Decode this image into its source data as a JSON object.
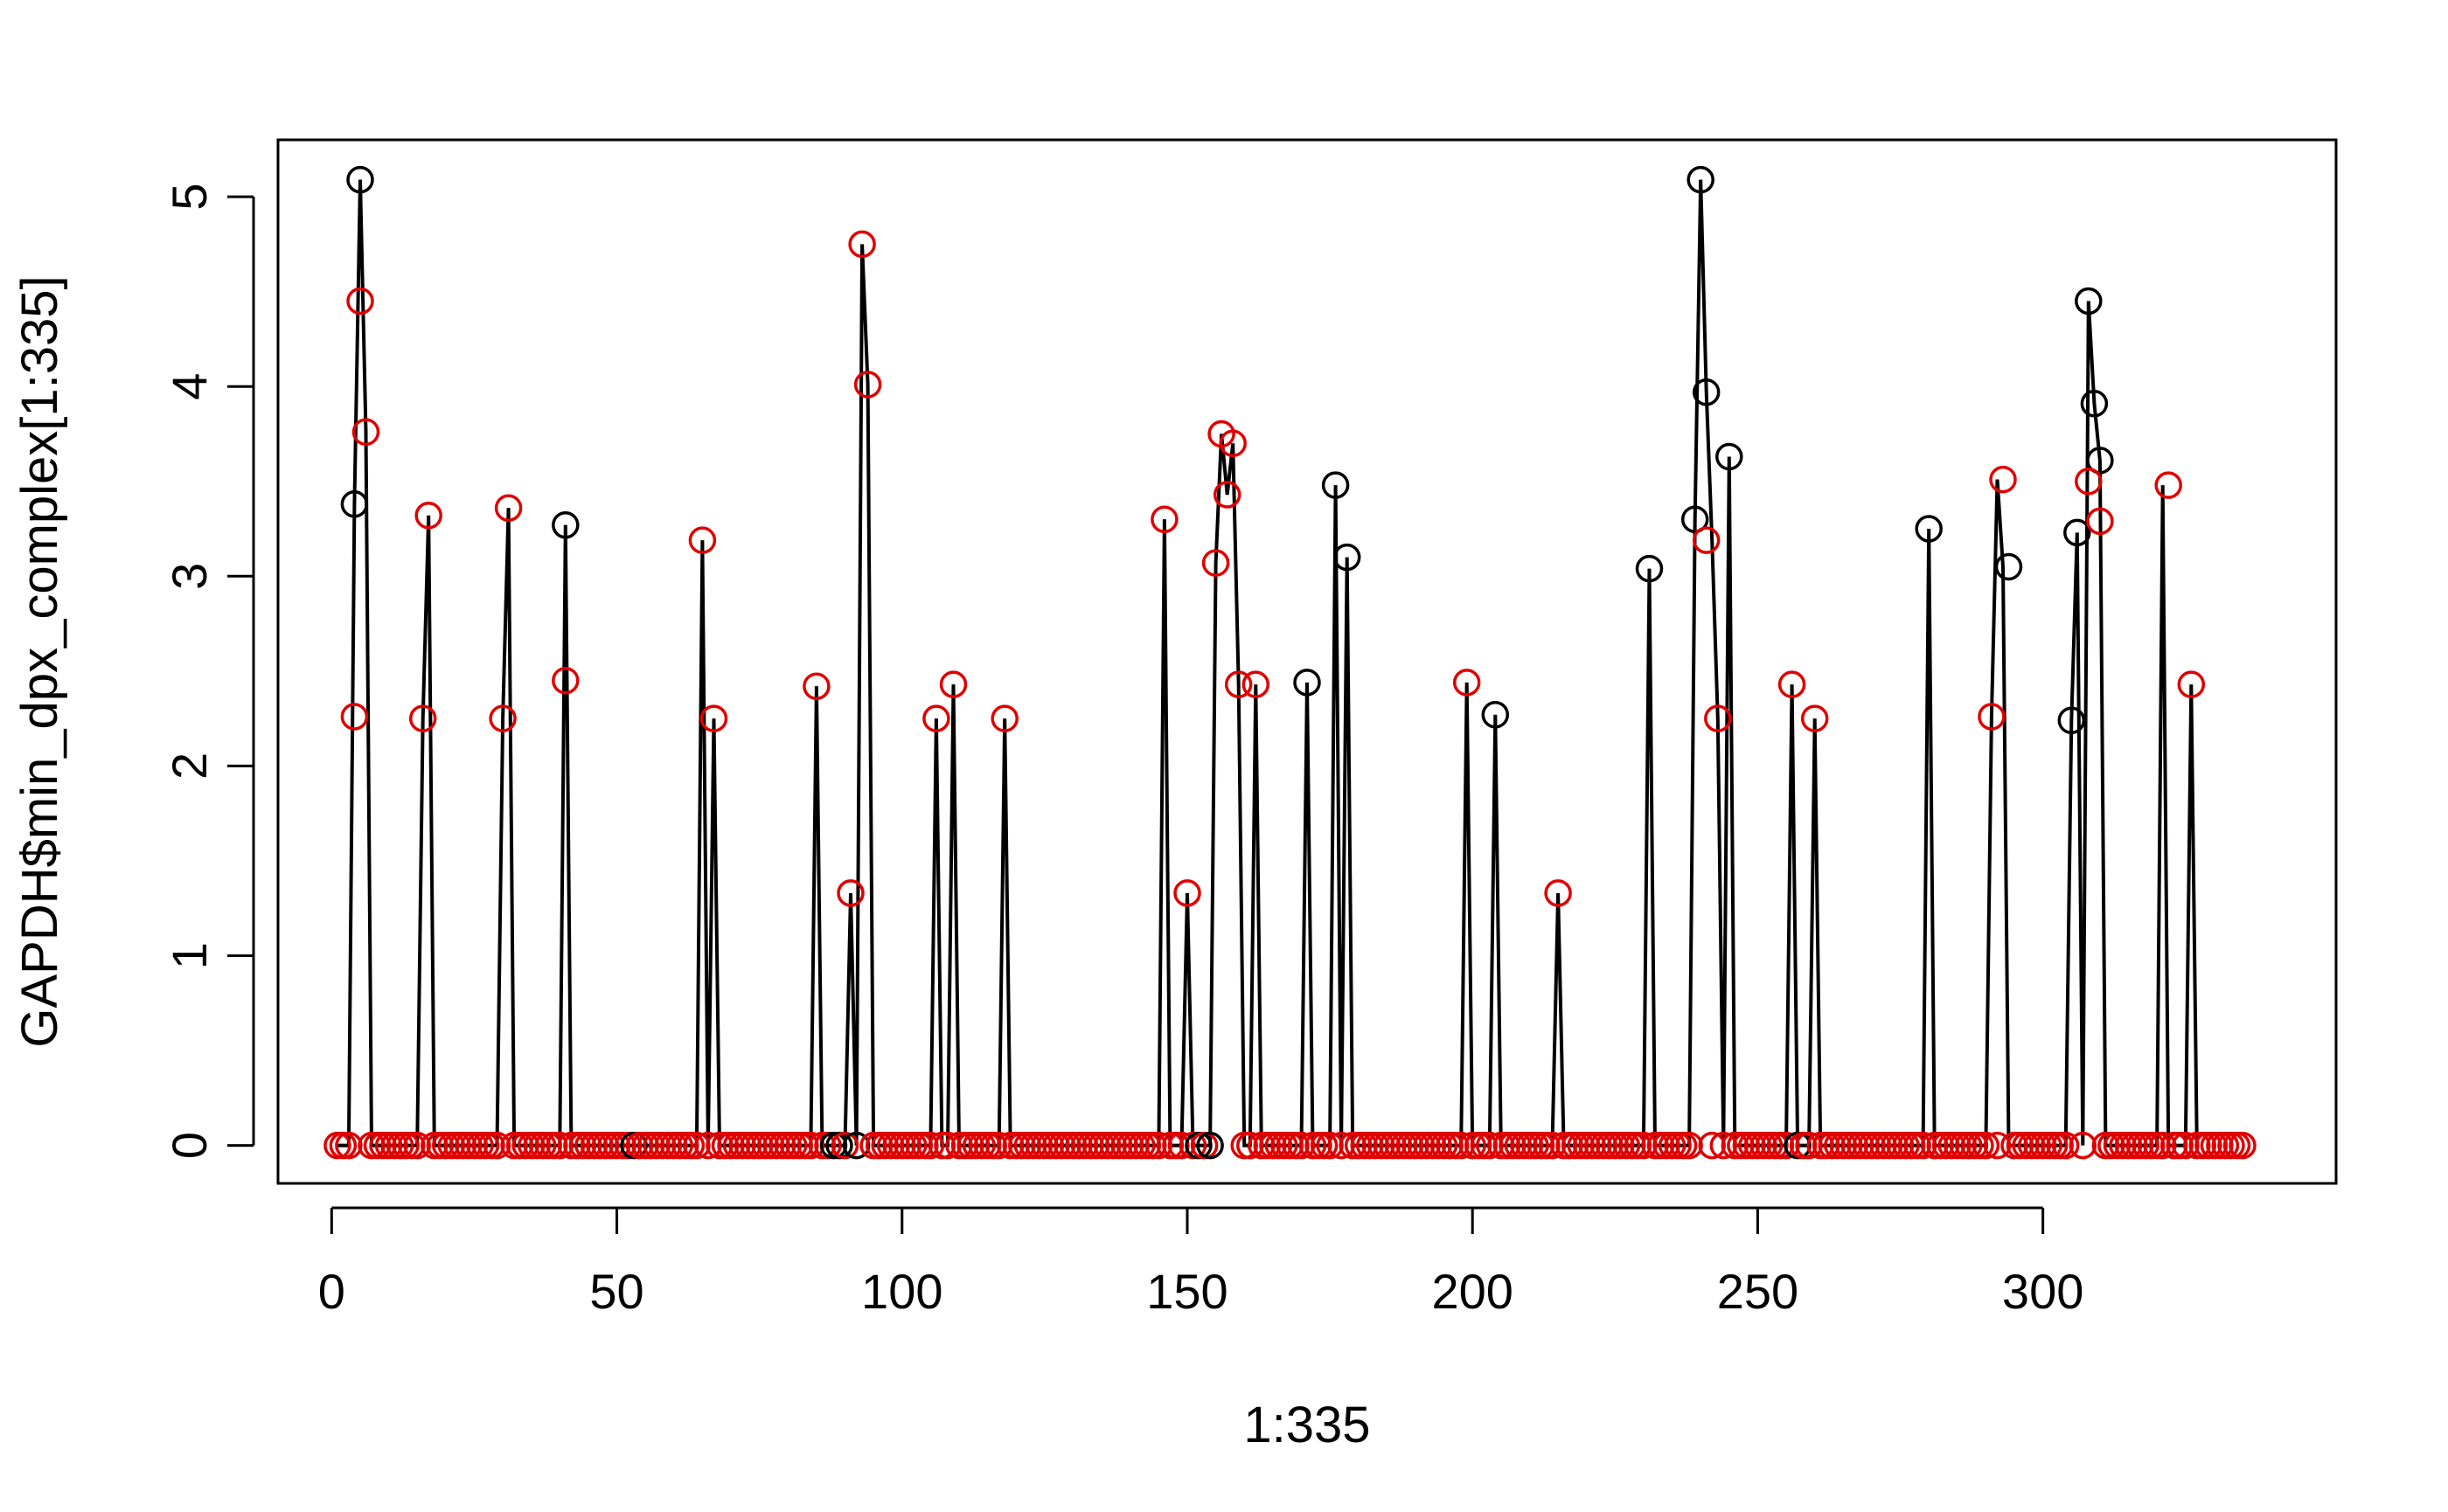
{
  "chart_data": {
    "type": "scatter",
    "title": "",
    "xlabel": "1:335",
    "ylabel": "GAPDH$min_dpx_complex[1:335]",
    "xlim": [
      -9.4,
      351.4
    ],
    "ylim": [
      -0.2,
      5.3
    ],
    "xticks": [
      0,
      50,
      100,
      150,
      200,
      250,
      300
    ],
    "yticks": [
      0,
      1,
      2,
      3,
      4,
      5
    ],
    "grid": false,
    "legend": "none",
    "n": 335,
    "colors": {
      "line": "#000000",
      "black_points": "#000000",
      "red_points": "#e00000"
    },
    "line_series": {
      "type": "line",
      "x": [
        1,
        2,
        3,
        4,
        5,
        6,
        7,
        15,
        16,
        17,
        18,
        29,
        30,
        31,
        32,
        40,
        41,
        42,
        64,
        65,
        66,
        67,
        68,
        84,
        85,
        86,
        90,
        91,
        92,
        93,
        94,
        95,
        105,
        106,
        107,
        108,
        109,
        110,
        117,
        118,
        119,
        145,
        146,
        147,
        149,
        150,
        151,
        154,
        155,
        156,
        157,
        158,
        159,
        160,
        161,
        162,
        163,
        170,
        171,
        172,
        175,
        176,
        177,
        178,
        179,
        198,
        199,
        200,
        203,
        204,
        205,
        214,
        215,
        216,
        230,
        231,
        232,
        238,
        239,
        240,
        241,
        242,
        243,
        244,
        245,
        246,
        255,
        256,
        257,
        259,
        260,
        261,
        279,
        280,
        281,
        290,
        291,
        292,
        293,
        294,
        295,
        304,
        305,
        306,
        307,
        308,
        309,
        310,
        311,
        320,
        321,
        322,
        325,
        326,
        327
      ],
      "y": [
        0,
        0,
        0,
        3.38,
        5.09,
        3.76,
        0,
        0,
        2.25,
        3.32,
        0,
        0,
        2.25,
        3.36,
        0,
        0,
        3.27,
        0,
        0,
        3.19,
        0,
        2.25,
        0,
        0,
        2.42,
        0,
        0,
        1.33,
        0,
        4.75,
        4.01,
        0,
        0,
        2.25,
        0,
        0,
        2.43,
        0,
        0,
        2.25,
        0,
        0,
        3.3,
        0,
        0,
        1.33,
        0,
        0,
        3.07,
        3.75,
        3.43,
        3.7,
        2.43,
        0,
        0,
        2.43,
        0,
        0,
        2.44,
        0,
        0,
        3.48,
        0,
        3.1,
        0,
        0,
        2.44,
        0,
        0,
        2.27,
        0,
        0,
        1.33,
        0,
        0,
        3.04,
        0,
        0,
        3.3,
        5.09,
        3.97,
        3.19,
        2.25,
        0,
        3.63,
        0,
        0,
        2.43,
        0,
        0,
        2.25,
        0,
        0,
        3.25,
        0,
        0,
        2.26,
        3.51,
        3.05,
        0,
        0,
        0,
        2.24,
        3.23,
        0,
        4.45,
        3.91,
        3.61,
        0,
        0,
        3.48,
        0,
        0,
        2.43,
        0
      ]
    },
    "black_points": {
      "x": [
        4,
        5,
        41,
        171,
        176,
        178,
        204,
        231,
        239,
        240,
        241,
        245,
        280,
        294,
        305,
        306,
        308,
        309,
        310
      ],
      "y": [
        3.38,
        5.09,
        3.27,
        2.44,
        3.48,
        3.1,
        2.27,
        3.04,
        3.3,
        5.09,
        3.97,
        3.63,
        3.25,
        3.05,
        2.24,
        3.23,
        4.45,
        3.91,
        3.61
      ]
    },
    "red_points": {
      "x": [
        4,
        5,
        6,
        16,
        17,
        30,
        31,
        41,
        65,
        67,
        85,
        91,
        93,
        94,
        106,
        109,
        118,
        146,
        150,
        155,
        156,
        157,
        158,
        159,
        162,
        199,
        215,
        241,
        243,
        256,
        260,
        291,
        293,
        308,
        310,
        322,
        326
      ],
      "y": [
        2.26,
        4.45,
        3.76,
        2.25,
        3.32,
        2.25,
        3.36,
        2.45,
        3.19,
        2.25,
        2.42,
        1.33,
        4.75,
        4.01,
        2.25,
        2.43,
        2.25,
        3.3,
        1.33,
        3.07,
        3.75,
        3.43,
        3.7,
        2.43,
        2.43,
        2.44,
        1.33,
        3.19,
        2.25,
        2.43,
        2.25,
        2.26,
        3.51,
        3.5,
        3.29,
        3.48,
        2.43
      ]
    },
    "zero_points": {
      "color": "#e00000",
      "value": 0,
      "note_exceptions_black_x": [
        53,
        88,
        89,
        92,
        146,
        152,
        154,
        243,
        257,
        308
      ]
    }
  }
}
